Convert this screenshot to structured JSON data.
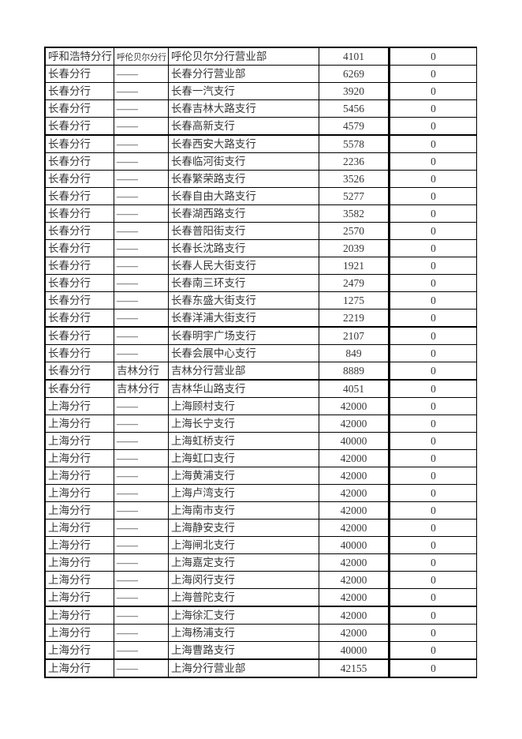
{
  "page": {
    "background_color": "#ffffff",
    "text_color": "#383838",
    "border_color": "#000000"
  },
  "table": {
    "column_roles": [
      "branch",
      "sub_branch",
      "office",
      "amount",
      "zero"
    ],
    "rows": [
      {
        "cells": [
          "呼和浩特分行",
          "呼伦贝尔分行",
          "呼伦贝尔分行营业部",
          "4101",
          "0"
        ],
        "shrink_col2": true,
        "thick_bottom": false
      },
      {
        "cells": [
          "长春分行",
          "——",
          "长春分行营业部",
          "6269",
          "0"
        ],
        "thick_bottom": false
      },
      {
        "cells": [
          "长春分行",
          "——",
          "长春一汽支行",
          "3920",
          "0"
        ],
        "thick_bottom": false
      },
      {
        "cells": [
          "长春分行",
          "——",
          "长春吉林大路支行",
          "5456",
          "0"
        ],
        "thick_bottom": false
      },
      {
        "cells": [
          "长春分行",
          "——",
          "长春高新支行",
          "4579",
          "0"
        ],
        "thick_bottom": true
      },
      {
        "cells": [
          "长春分行",
          "——",
          "长春西安大路支行",
          "5578",
          "0"
        ],
        "thick_bottom": false
      },
      {
        "cells": [
          "长春分行",
          "——",
          "长春临河街支行",
          "2236",
          "0"
        ],
        "thick_bottom": false
      },
      {
        "cells": [
          "长春分行",
          "——",
          "长春繁荣路支行",
          "3526",
          "0"
        ],
        "thick_bottom": false
      },
      {
        "cells": [
          "长春分行",
          "——",
          "长春自由大路支行",
          "5277",
          "0"
        ],
        "thick_bottom": false
      },
      {
        "cells": [
          "长春分行",
          "——",
          "长春湖西路支行",
          "3582",
          "0"
        ],
        "thick_bottom": false
      },
      {
        "cells": [
          "长春分行",
          "——",
          "长春普阳街支行",
          "2570",
          "0"
        ],
        "thick_bottom": false
      },
      {
        "cells": [
          "长春分行",
          "——",
          "长春长沈路支行",
          "2039",
          "0"
        ],
        "thick_bottom": false
      },
      {
        "cells": [
          "长春分行",
          "——",
          "长春人民大街支行",
          "1921",
          "0"
        ],
        "thick_bottom": false
      },
      {
        "cells": [
          "长春分行",
          "——",
          "长春南三环支行",
          "2479",
          "0"
        ],
        "thick_bottom": false
      },
      {
        "cells": [
          "长春分行",
          "——",
          "长春东盛大街支行",
          "1275",
          "0"
        ],
        "thick_bottom": false
      },
      {
        "cells": [
          "长春分行",
          "——",
          "长春洋浦大街支行",
          "2219",
          "0"
        ],
        "thick_bottom": true
      },
      {
        "cells": [
          "长春分行",
          "——",
          "长春明宇广场支行",
          "2107",
          "0"
        ],
        "thick_bottom": false
      },
      {
        "cells": [
          "长春分行",
          "——",
          "长春会展中心支行",
          "849",
          "0"
        ],
        "thick_bottom": false
      },
      {
        "cells": [
          "长春分行",
          "吉林分行",
          "吉林分行营业部",
          "8889",
          "0"
        ],
        "thick_bottom": true
      },
      {
        "cells": [
          "长春分行",
          "吉林分行",
          "吉林华山路支行",
          "4051",
          "0"
        ],
        "thick_bottom": false
      },
      {
        "cells": [
          "上海分行",
          "——",
          "上海顾村支行",
          "42000",
          "0"
        ],
        "thick_bottom": false
      },
      {
        "cells": [
          "上海分行",
          "——",
          "上海长宁支行",
          "42000",
          "0"
        ],
        "thick_bottom": false
      },
      {
        "cells": [
          "上海分行",
          "——",
          "上海虹桥支行",
          "40000",
          "0"
        ],
        "thick_bottom": false
      },
      {
        "cells": [
          "上海分行",
          "——",
          "上海虹口支行",
          "42000",
          "0"
        ],
        "thick_bottom": false
      },
      {
        "cells": [
          "上海分行",
          "——",
          "上海黄浦支行",
          "42000",
          "0"
        ],
        "thick_bottom": false
      },
      {
        "cells": [
          "上海分行",
          "——",
          "上海卢湾支行",
          "42000",
          "0"
        ],
        "thick_bottom": false
      },
      {
        "cells": [
          "上海分行",
          "——",
          "上海南市支行",
          "42000",
          "0"
        ],
        "thick_bottom": false
      },
      {
        "cells": [
          "上海分行",
          "——",
          "上海静安支行",
          "42000",
          "0"
        ],
        "thick_bottom": false
      },
      {
        "cells": [
          "上海分行",
          "——",
          "上海闸北支行",
          "40000",
          "0"
        ],
        "thick_bottom": false
      },
      {
        "cells": [
          "上海分行",
          "——",
          "上海嘉定支行",
          "42000",
          "0"
        ],
        "thick_bottom": false
      },
      {
        "cells": [
          "上海分行",
          "——",
          "上海闵行支行",
          "42000",
          "0"
        ],
        "thick_bottom": false
      },
      {
        "cells": [
          "上海分行",
          "——",
          "上海普陀支行",
          "42000",
          "0"
        ],
        "thick_bottom": true
      },
      {
        "cells": [
          "上海分行",
          "——",
          "上海徐汇支行",
          "42000",
          "0"
        ],
        "thick_bottom": false
      },
      {
        "cells": [
          "上海分行",
          "——",
          "上海杨浦支行",
          "42000",
          "0"
        ],
        "thick_bottom": false
      },
      {
        "cells": [
          "上海分行",
          "——",
          "上海曹路支行",
          "40000",
          "0"
        ],
        "thick_bottom": true
      },
      {
        "cells": [
          "上海分行",
          "——",
          "上海分行营业部",
          "42155",
          "0"
        ],
        "thick_bottom": false
      }
    ]
  }
}
